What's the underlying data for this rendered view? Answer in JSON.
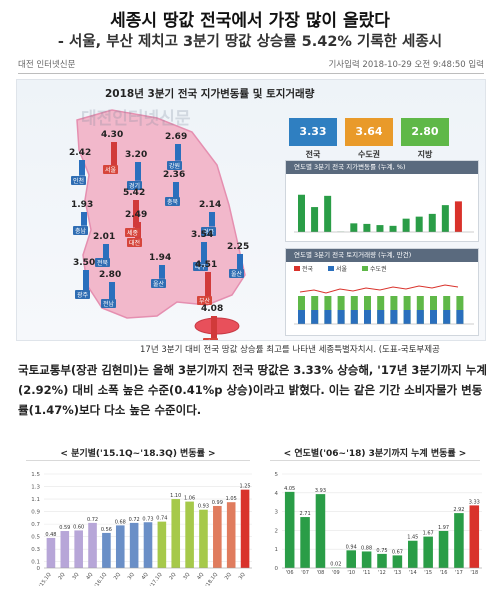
{
  "article": {
    "headline": "세종시 땅값 전국에서 가장 많이 올랐다",
    "subheadline": "- 서울, 부산 제치고 3분기 땅값 상승률 5.42% 기록한 세종시",
    "source": "대전 인터넷신문",
    "date": "기사입력 2018-10-29 오전 9:48:50 입력",
    "caption": "17년 3분기 대비 전국 땅값 상승률 최고를 나타낸 세종특별자치시. (도표-국토부제공",
    "body": "국토교통부(장관 김현미)는 올해 3분기까지 전국 땅값은 3.33% 상승해, '17년 3분기까지 누계(2.92%) 대비 소폭 높은 수준(0.41%p 상승)이라고 밝혔다. 이는 같은 기간 소비자물가 변동률(1.47%)보다 다소 높은 수준이다."
  },
  "infographic": {
    "title": "2018년 3분기 전국 지가변동률 및 토지거래량",
    "watermark": "대전인터넷신문",
    "summary": [
      {
        "value": "3.33",
        "label": "전국",
        "color": "#2f7fc1"
      },
      {
        "value": "3.64",
        "label": "수도권",
        "color": "#e99a2a"
      },
      {
        "value": "2.80",
        "label": "지방",
        "color": "#5fb848"
      }
    ],
    "regions": [
      {
        "value": "4.30",
        "name": "서울"
      },
      {
        "value": "2.69",
        "name": "강원"
      },
      {
        "value": "2.42",
        "name": "인천"
      },
      {
        "value": "3.20",
        "name": "경기"
      },
      {
        "value": "2.36",
        "name": "충북"
      },
      {
        "value": "5.42",
        "name": "세종"
      },
      {
        "value": "1.93",
        "name": "충남"
      },
      {
        "value": "2.49",
        "name": "대전"
      },
      {
        "value": "2.14",
        "name": "경북"
      },
      {
        "value": "2.01",
        "name": "전북"
      },
      {
        "value": "3.54",
        "name": "대구"
      },
      {
        "value": "1.94",
        "name": "울산"
      },
      {
        "value": "3.50",
        "name": "광주"
      },
      {
        "value": "4.51",
        "name": "부산"
      },
      {
        "value": "2.25",
        "name": "울산"
      },
      {
        "value": "2.80",
        "name": "전남"
      },
      {
        "value": "4.08",
        "name": "제주"
      }
    ],
    "mini1_title": "연도별 3분기 전국 지가변동률 (누계, %)",
    "mini2_title": "연도별 3분기 전국 토지거래량 (누계, 만건)",
    "mini2_legend": [
      "전국",
      "서울",
      "수도권"
    ]
  },
  "chart_data": [
    {
      "type": "bar",
      "title": "< 분기별('15.1Q~'18.3Q) 변동률 >",
      "categories": [
        "'15.1Q",
        "2Q",
        "3Q",
        "4Q",
        "'16.1Q",
        "2Q",
        "3Q",
        "4Q",
        "'17.1Q",
        "2Q",
        "3Q",
        "4Q",
        "'18.1Q",
        "2Q",
        "3Q"
      ],
      "values": [
        0.48,
        0.59,
        0.6,
        0.72,
        0.56,
        0.68,
        0.72,
        0.73,
        0.74,
        1.1,
        1.06,
        0.93,
        0.99,
        1.05,
        1.25
      ],
      "colors": [
        "#b7a6d8",
        "#b7a6d8",
        "#b7a6d8",
        "#b7a6d8",
        "#6a8fc7",
        "#6a8fc7",
        "#6a8fc7",
        "#6a8fc7",
        "#a6c94a",
        "#a6c94a",
        "#a6c94a",
        "#a6c94a",
        "#e07c5e",
        "#e07c5e",
        "#d9322b"
      ],
      "ylim": [
        0,
        1.5
      ],
      "yticks": [
        0,
        0.1,
        0.3,
        0.5,
        0.7,
        0.9,
        1.1,
        1.3,
        1.5
      ]
    },
    {
      "type": "bar",
      "title": "< 연도별('06~'18) 3분기까지 누계 변동률 >",
      "categories": [
        "'06",
        "'07",
        "'08",
        "'09",
        "'10",
        "'11",
        "'12",
        "'13",
        "'14",
        "'15",
        "'16",
        "'17",
        "'18"
      ],
      "values": [
        4.05,
        2.71,
        3.93,
        0.02,
        0.94,
        0.88,
        0.75,
        0.67,
        1.45,
        1.67,
        1.97,
        2.92,
        3.33
      ],
      "colors": [
        "#2a9d47",
        "#2a9d47",
        "#2a9d47",
        "#2a9d47",
        "#2a9d47",
        "#2a9d47",
        "#2a9d47",
        "#2a9d47",
        "#2a9d47",
        "#2a9d47",
        "#2a9d47",
        "#2a9d47",
        "#d9322b"
      ],
      "ylim": [
        0,
        5
      ],
      "yticks": [
        0,
        1,
        2,
        3,
        4,
        5
      ]
    }
  ]
}
